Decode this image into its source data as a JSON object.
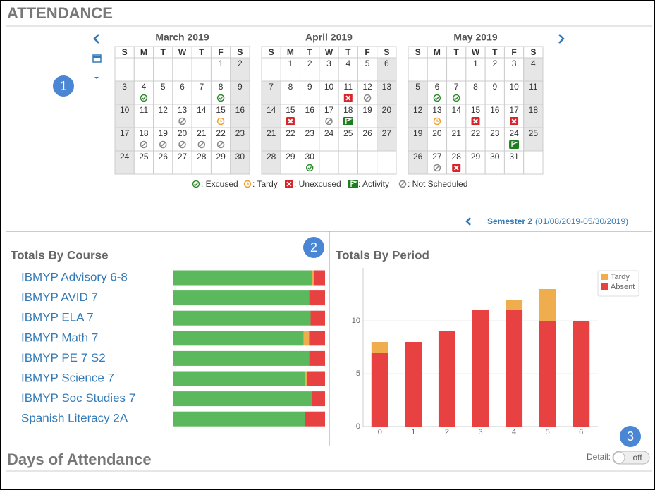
{
  "header": {
    "title": "ATTENDANCE"
  },
  "badges": [
    1,
    2,
    3
  ],
  "calendar": {
    "weekdays": [
      "S",
      "M",
      "T",
      "W",
      "T",
      "F",
      "S"
    ],
    "months": [
      {
        "name": "March 2019",
        "weeks": [
          [
            null,
            null,
            null,
            null,
            null,
            1,
            2
          ],
          [
            3,
            {
              "day": 4,
              "status": "excused"
            },
            5,
            6,
            7,
            {
              "day": 8,
              "status": "excused"
            },
            9
          ],
          [
            10,
            11,
            12,
            {
              "day": 13,
              "status": "not-scheduled"
            },
            14,
            {
              "day": 15,
              "status": "tardy"
            },
            16
          ],
          [
            17,
            {
              "day": 18,
              "status": "not-scheduled"
            },
            {
              "day": 19,
              "status": "not-scheduled"
            },
            {
              "day": 20,
              "status": "not-scheduled"
            },
            {
              "day": 21,
              "status": "not-scheduled"
            },
            {
              "day": 22,
              "status": "not-scheduled"
            },
            23
          ],
          [
            24,
            25,
            26,
            27,
            28,
            29,
            30
          ]
        ]
      },
      {
        "name": "April 2019",
        "weeks": [
          [
            null,
            1,
            2,
            3,
            4,
            5,
            6
          ],
          [
            7,
            8,
            9,
            10,
            {
              "day": 11,
              "status": "unexcused"
            },
            {
              "day": 12,
              "status": "not-scheduled"
            },
            13
          ],
          [
            14,
            {
              "day": 15,
              "status": "unexcused"
            },
            16,
            {
              "day": 17,
              "status": "not-scheduled"
            },
            {
              "day": 18,
              "status": "activity"
            },
            19,
            20
          ],
          [
            21,
            22,
            23,
            24,
            25,
            26,
            27
          ],
          [
            28,
            29,
            {
              "day": 30,
              "status": "excused"
            },
            null,
            null,
            null,
            null
          ]
        ]
      },
      {
        "name": "May 2019",
        "weeks": [
          [
            null,
            null,
            null,
            1,
            2,
            3,
            4
          ],
          [
            5,
            {
              "day": 6,
              "status": "excused"
            },
            {
              "day": 7,
              "status": "excused"
            },
            8,
            9,
            10,
            11
          ],
          [
            12,
            {
              "day": 13,
              "status": "tardy"
            },
            14,
            {
              "day": 15,
              "status": "unexcused"
            },
            16,
            {
              "day": 17,
              "status": "unexcused"
            },
            18
          ],
          [
            19,
            20,
            21,
            22,
            23,
            {
              "day": 24,
              "status": "activity"
            },
            25
          ],
          [
            26,
            {
              "day": 27,
              "status": "not-scheduled"
            },
            {
              "day": 28,
              "status": "unexcused"
            },
            29,
            30,
            31,
            null
          ]
        ]
      }
    ]
  },
  "legend": [
    {
      "status": "excused",
      "label": ": Excused"
    },
    {
      "status": "tardy",
      "label": ": Tardy"
    },
    {
      "status": "unexcused",
      "label": ": Unexcused"
    },
    {
      "status": "activity",
      "label": ": Activity"
    },
    {
      "status": "not-scheduled",
      "label": ": Not Scheduled"
    }
  ],
  "semester": {
    "name": "Semester 2",
    "range": "(01/08/2019-05/30/2019)"
  },
  "chart_data": [
    {
      "type": "bar",
      "orientation": "horizontal",
      "stacked": true,
      "title": "Totals By Course",
      "categories": [
        "IBMYP Advisory 6-8",
        "IBMYP AVID 7",
        "IBMYP ELA 7",
        "IBMYP Math 7",
        "IBMYP PE 7 S2",
        "IBMYP Science 7",
        "IBMYP Soc Studies 7",
        "Spanish Literacy 2A"
      ],
      "xlim": [
        0,
        100
      ],
      "series": [
        {
          "color": "#5cb85c",
          "values": [
            91.5,
            89.5,
            90.5,
            86,
            89.5,
            87,
            91.5,
            87
          ]
        },
        {
          "color": "#f0ad4e",
          "values": [
            1,
            0,
            0,
            3.5,
            0,
            1,
            0,
            0
          ]
        },
        {
          "color": "#e84141",
          "values": [
            7.5,
            10.5,
            9.5,
            10.5,
            10.5,
            12,
            8.5,
            13
          ]
        }
      ]
    },
    {
      "type": "bar",
      "orientation": "vertical",
      "stacked": true,
      "title": "Totals By Period",
      "categories": [
        "0",
        "1",
        "2",
        "3",
        "4",
        "5",
        "6"
      ],
      "series": [
        {
          "name": "Tardy",
          "color": "#f0ad4e",
          "values": [
            1,
            0,
            0,
            0,
            1,
            3,
            0
          ]
        },
        {
          "name": "Absent",
          "color": "#e84141",
          "values": [
            7,
            8,
            9,
            11,
            11,
            10,
            10
          ]
        }
      ],
      "ylim": [
        0,
        15
      ],
      "yticks": [
        0,
        5,
        10
      ],
      "grid": true,
      "legend": "top-right"
    }
  ],
  "footer": {
    "title": "Days of Attendance",
    "detail_label": "Detail:",
    "toggle": "off"
  }
}
